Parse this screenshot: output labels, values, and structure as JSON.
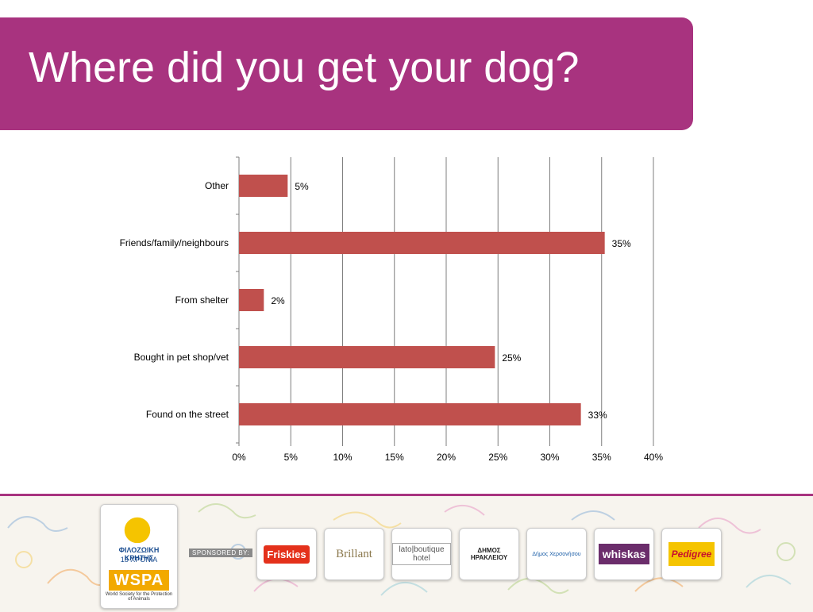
{
  "slide": {
    "title": "Where did you get your dog?"
  },
  "colors": {
    "banner": "#a8337f",
    "bar": "#c0504d",
    "gridline": "#7f7f7f"
  },
  "chart_data": {
    "type": "bar",
    "orientation": "horizontal",
    "categories": [
      "Other",
      "Friends/family/neighbours",
      "From shelter",
      "Bought in pet shop/vet",
      "Found on the street"
    ],
    "values": [
      4.7,
      35.3,
      2.4,
      24.7,
      33.0
    ],
    "data_labels": [
      "5%",
      "35%",
      "2%",
      "25%",
      "33%"
    ],
    "xlim": [
      0,
      40
    ],
    "xticks": [
      0,
      5,
      10,
      15,
      20,
      25,
      30,
      35,
      40
    ],
    "xtick_labels": [
      "0%",
      "5%",
      "10%",
      "15%",
      "20%",
      "25%",
      "30%",
      "35%",
      "40%"
    ],
    "grid": true,
    "legend": "none",
    "title": "",
    "xlabel": "",
    "ylabel": ""
  },
  "footer": {
    "org_name": "ΦΙΛΟΖΩΙΚΗ ΚΡΗΤΗΣ",
    "org_years": "15 ΧΡΟΝΙΑ",
    "wspa": "WSPA",
    "wspa_full": "World Society for the Protection of Animals",
    "sponsored_by": "SPONSORED BY:",
    "sponsors": [
      {
        "name": "Friskies",
        "icon": "friskies-logo"
      },
      {
        "name": "Brillant",
        "icon": "brillant-logo"
      },
      {
        "name": "lato|boutique hotel",
        "icon": "lato-logo"
      },
      {
        "name": "ΔΗΜΟΣ ΗΡΑΚΛΕΙΟΥ",
        "icon": "heraklion-municipality-logo"
      },
      {
        "name": "Δήμος Χερσονήσου",
        "icon": "hersonissos-municipality-logo"
      },
      {
        "name": "whiskas",
        "icon": "whiskas-logo"
      },
      {
        "name": "Pedigree",
        "icon": "pedigree-logo"
      }
    ]
  }
}
